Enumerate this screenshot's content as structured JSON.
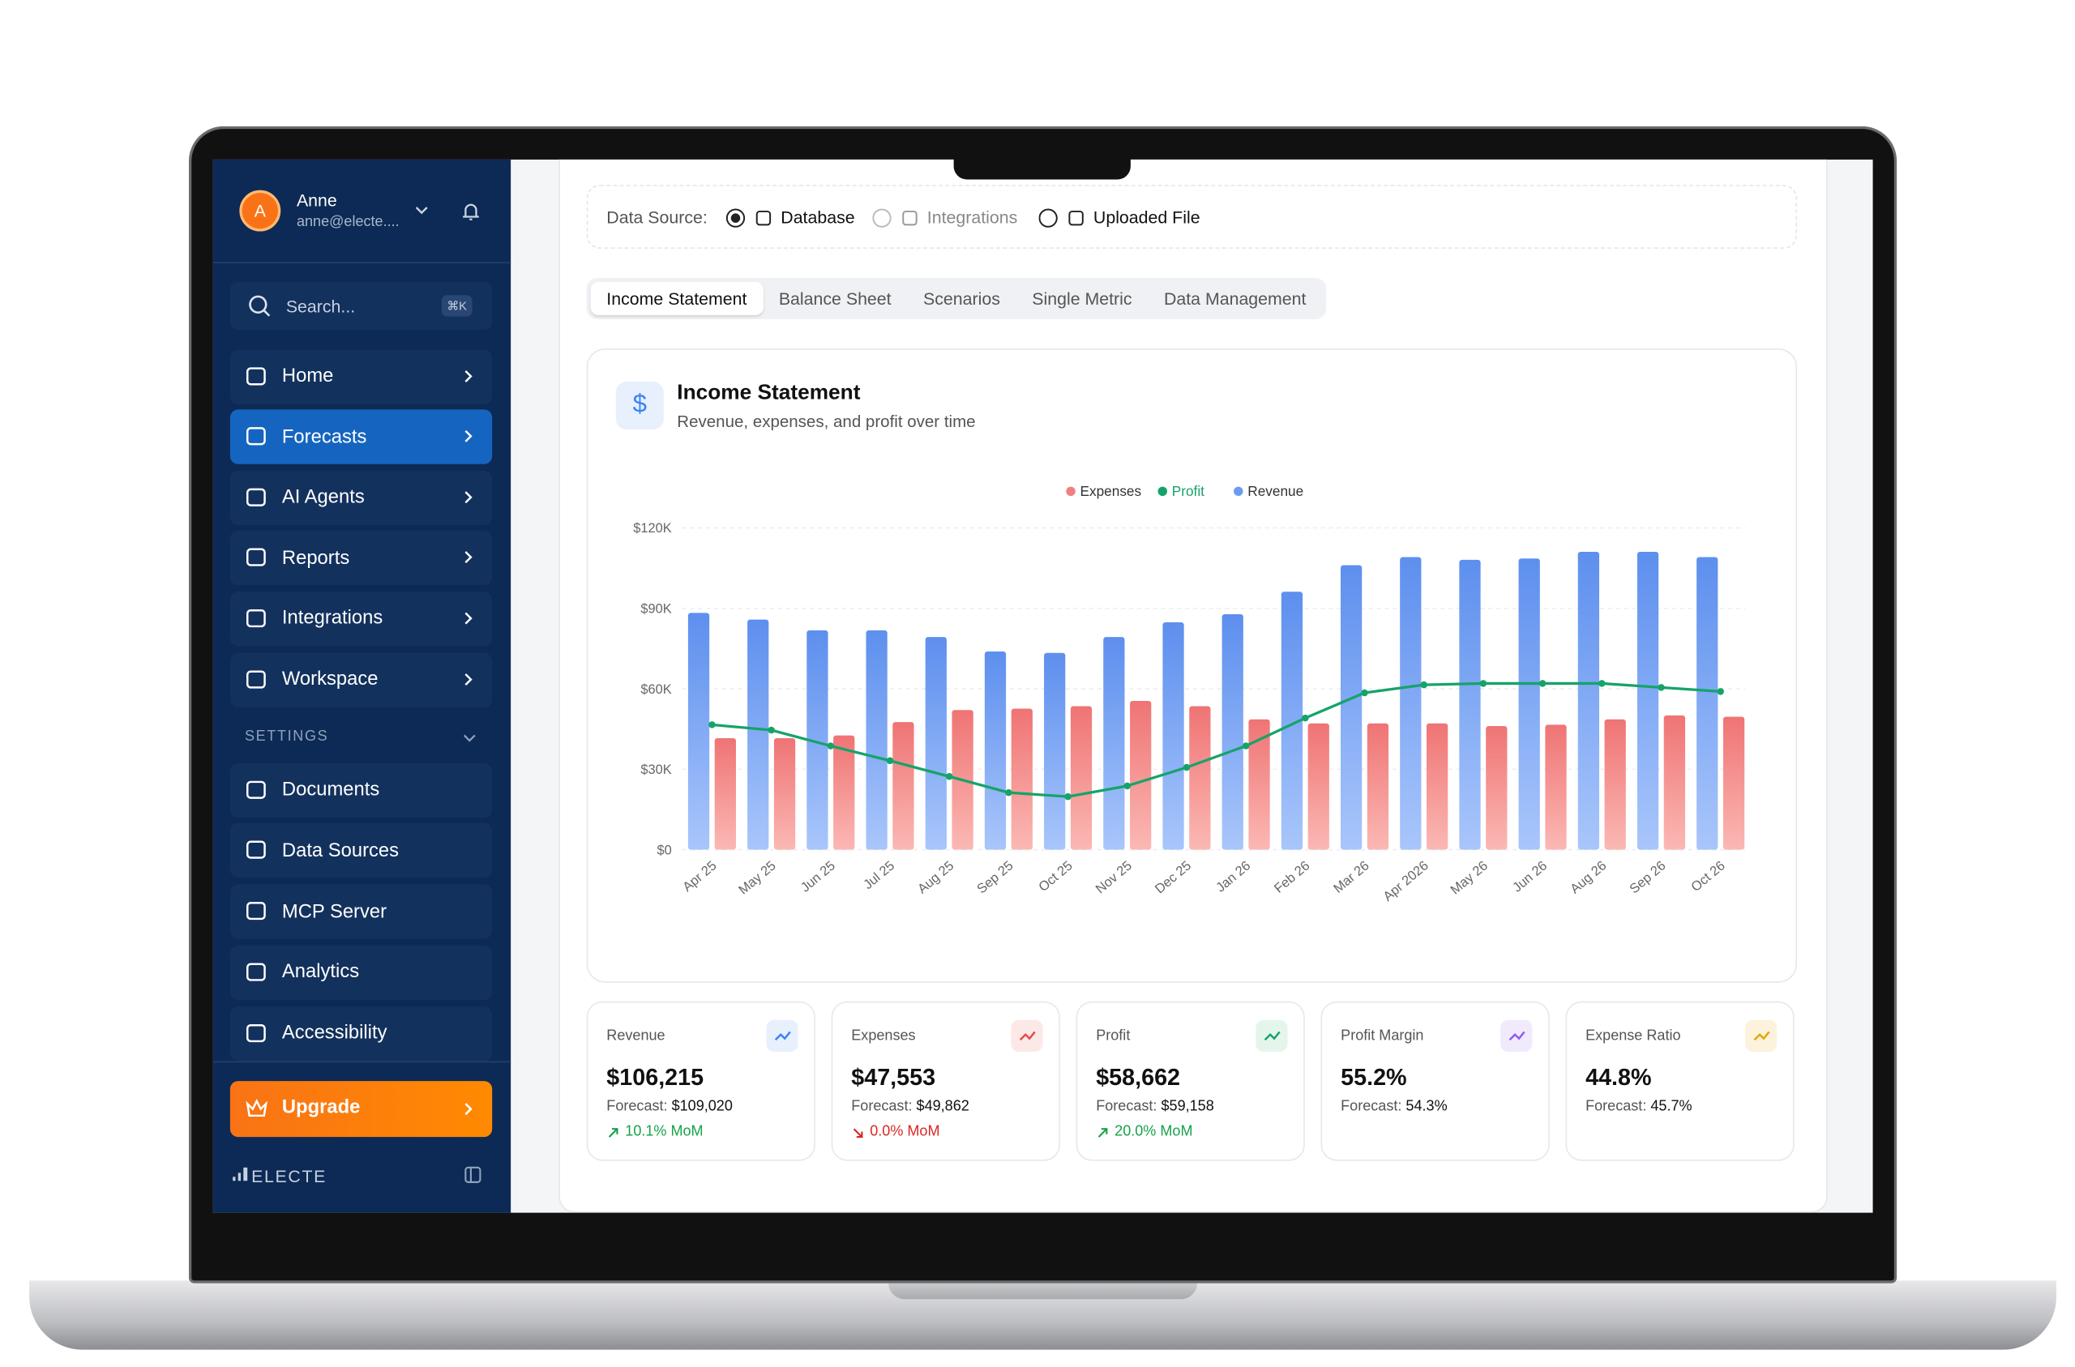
{
  "sidebar": {
    "user": {
      "initial": "A",
      "name": "Anne",
      "email": "anne@electe...."
    },
    "search": {
      "placeholder": "Search...",
      "shortcut": "⌘K"
    },
    "nav": [
      "Home",
      "Forecasts",
      "AI Agents",
      "Reports",
      "Integrations",
      "Workspace"
    ],
    "settings_label": "SETTINGS",
    "settings": [
      "Documents",
      "Data Sources",
      "MCP Server",
      "Analytics",
      "Accessibility"
    ],
    "upgrade": "Upgrade",
    "brand": "ELECTE"
  },
  "data_source": {
    "label": "Data Source:",
    "options": [
      "Database",
      "Integrations",
      "Uploaded File"
    ]
  },
  "tabs": [
    "Income Statement",
    "Balance Sheet",
    "Scenarios",
    "Single Metric",
    "Data Management"
  ],
  "panel": {
    "icon": "$",
    "title": "Income Statement",
    "subtitle": "Revenue, expenses, and profit over time"
  },
  "chart_data": {
    "type": "bar-line",
    "categories": [
      "Apr 25",
      "May 25",
      "Jun 25",
      "Jul 25",
      "Aug 25",
      "Sep 25",
      "Oct 25",
      "Nov 25",
      "Dec 25",
      "Jan 26",
      "Feb 26",
      "Mar 26",
      "Apr 2026",
      "May 26",
      "Jun 26",
      "Aug 26",
      "Sep 26",
      "Oct 26"
    ],
    "series": [
      {
        "name": "Expenses",
        "color": "#f07f7f",
        "values": [
          41600,
          41600,
          42600,
          47600,
          52100,
          52600,
          53500,
          55500,
          53500,
          48600,
          47100,
          47100,
          47100,
          46100,
          46600,
          48600,
          50100,
          49600
        ]
      },
      {
        "name": "Profit",
        "color": "#16a36a",
        "values": [
          46600,
          44600,
          38700,
          33200,
          27300,
          21300,
          19800,
          23800,
          30700,
          38700,
          49100,
          58500,
          61500,
          62000,
          62000,
          62000,
          60500,
          59000
        ]
      },
      {
        "name": "Revenue",
        "color": "#6b9cf2",
        "values": [
          88300,
          85800,
          81800,
          81800,
          79300,
          73900,
          73400,
          79300,
          84800,
          87800,
          96200,
          106100,
          109100,
          108100,
          108600,
          111100,
          111100,
          109100
        ]
      }
    ],
    "ylim": [
      0,
      120000
    ],
    "yticks": [
      {
        "value": 0,
        "label": "$0"
      },
      {
        "value": 30000,
        "label": "$30K"
      },
      {
        "value": 60000,
        "label": "$60K"
      },
      {
        "value": 90000,
        "label": "$90K"
      },
      {
        "value": 120000,
        "label": "$120K"
      }
    ],
    "grid": true
  },
  "kpis": [
    {
      "label": "Revenue",
      "value": "$106,215",
      "forecast_label": "Forecast:",
      "forecast": "$109,020",
      "change": "10.1% MoM"
    },
    {
      "label": "Expenses",
      "value": "$47,553",
      "forecast_label": "Forecast:",
      "forecast": "$49,862",
      "change": "0.0% MoM"
    },
    {
      "label": "Profit",
      "value": "$58,662",
      "forecast_label": "Forecast:",
      "forecast": "$59,158",
      "change": "20.0% MoM"
    },
    {
      "label": "Profit Margin",
      "value": "55.2%",
      "forecast_label": "Forecast:",
      "forecast": "54.3%"
    },
    {
      "label": "Expense Ratio",
      "value": "44.8%",
      "forecast_label": "Forecast:",
      "forecast": "45.7%"
    }
  ]
}
